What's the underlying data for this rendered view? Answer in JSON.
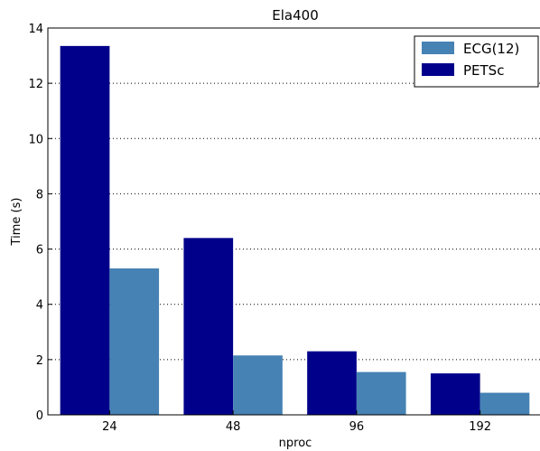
{
  "chart_data": {
    "type": "bar",
    "title": "Ela400",
    "xlabel": "nproc",
    "ylabel": "Time (s)",
    "categories": [
      "24",
      "48",
      "96",
      "192"
    ],
    "ylim": [
      0,
      14
    ],
    "yticks": [
      0,
      2,
      4,
      6,
      8,
      10,
      12,
      14
    ],
    "grid": "y-dotted",
    "legend_position": "top-right",
    "series": [
      {
        "name": "PETSc",
        "color": "#00008B",
        "values": [
          13.35,
          6.4,
          2.3,
          1.5
        ]
      },
      {
        "name": "ECG(12)",
        "color": "#4682B4",
        "values": [
          5.3,
          2.15,
          1.55,
          0.8
        ]
      }
    ],
    "legend_order": [
      "ECG(12)",
      "PETSc"
    ]
  }
}
